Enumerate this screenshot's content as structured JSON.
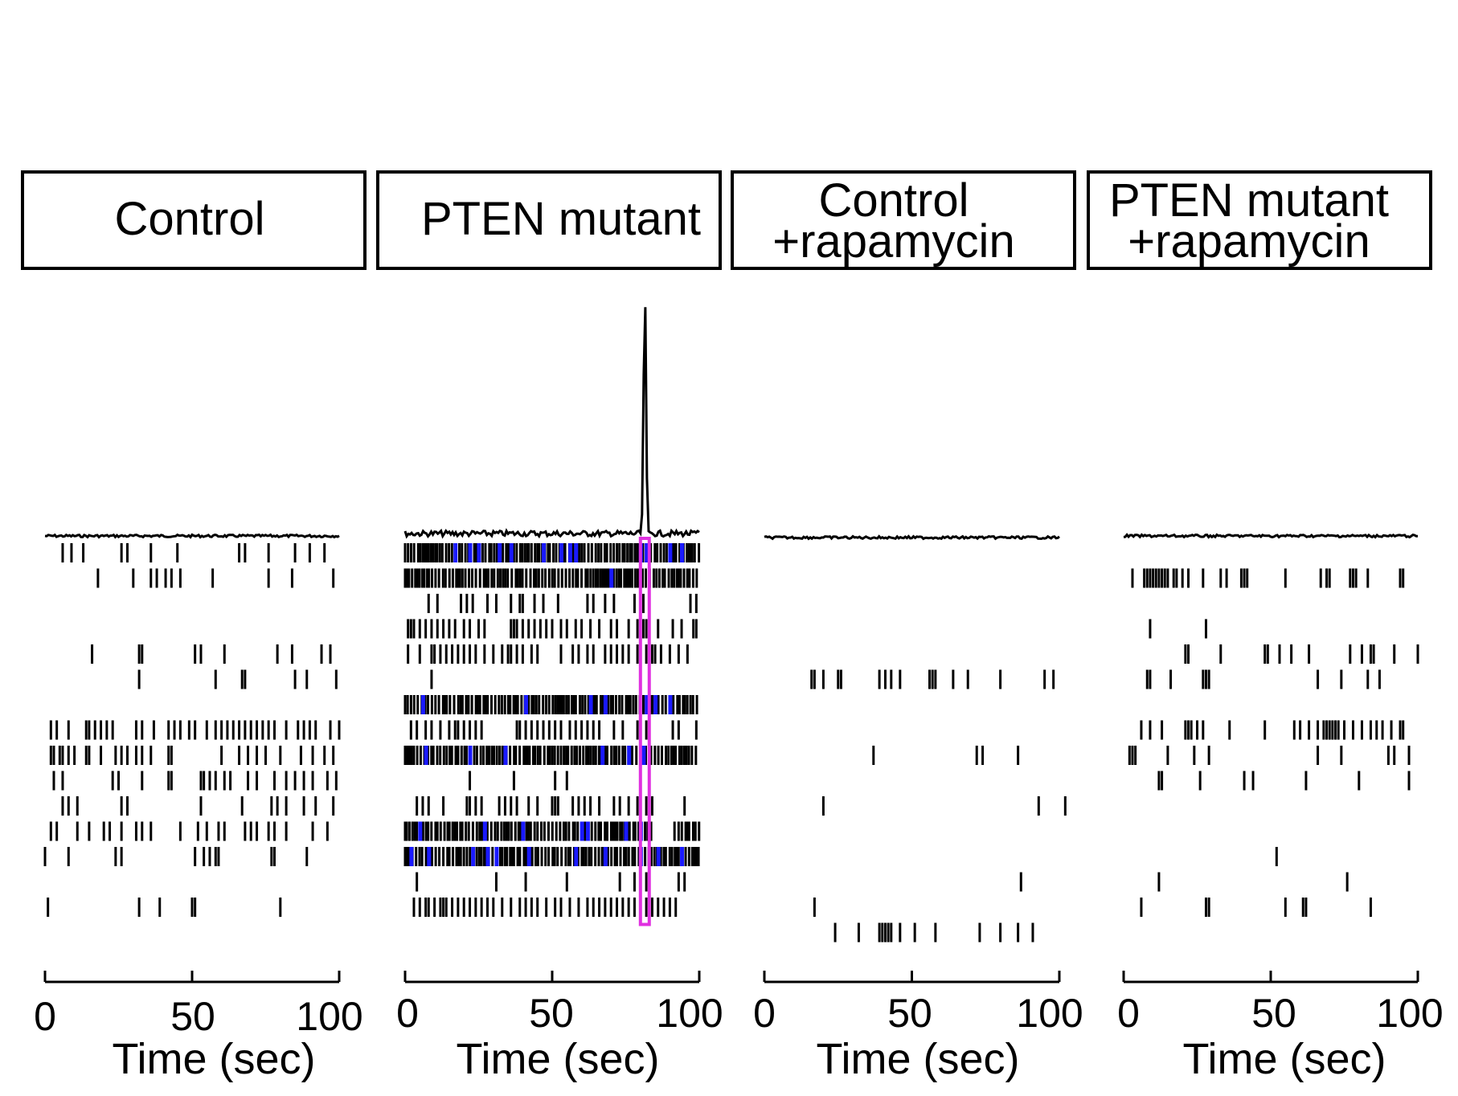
{
  "chart_data": [
    {
      "type": "raster",
      "title": "Control",
      "xlabel": "Time (sec)",
      "xlim": [
        0,
        100
      ],
      "xticks": [
        0,
        50,
        100
      ],
      "rows": [
        {
          "spikes": [
            6,
            9,
            13,
            26,
            28,
            36,
            45,
            66,
            68,
            76,
            85,
            90,
            95
          ],
          "sync": []
        },
        {
          "spikes": [
            18,
            30,
            36,
            38,
            41,
            43,
            46,
            57,
            76,
            84,
            98
          ],
          "sync": []
        },
        {
          "spikes": [],
          "sync": []
        },
        {
          "spikes": [],
          "sync": []
        },
        {
          "spikes": [
            16,
            32,
            33,
            51,
            53,
            61,
            79,
            84,
            94,
            97
          ],
          "sync": []
        },
        {
          "spikes": [
            32,
            58,
            67,
            68,
            85,
            89,
            99
          ],
          "sync": []
        },
        {
          "spikes": [],
          "sync": []
        },
        {
          "spikes": [
            2,
            4,
            8,
            14,
            15,
            17,
            19,
            21,
            23,
            31,
            33,
            37,
            42,
            44,
            46,
            49,
            51,
            55,
            58,
            60,
            62,
            64,
            66,
            68,
            70,
            72,
            74,
            76,
            78,
            82,
            86,
            88,
            90,
            92,
            97,
            100
          ],
          "sync": []
        },
        {
          "spikes": [
            2,
            3,
            5,
            6,
            8,
            10,
            14,
            15,
            19,
            24,
            26,
            28,
            31,
            33,
            36,
            42,
            43,
            60,
            66,
            69,
            72,
            75,
            80,
            87,
            91,
            95,
            98
          ],
          "sync": []
        },
        {
          "spikes": [
            3,
            6,
            23,
            25,
            33,
            42,
            43,
            53,
            54,
            56,
            58,
            61,
            63,
            69,
            72,
            78,
            82,
            85,
            88,
            91,
            96,
            99
          ],
          "sync": []
        },
        {
          "spikes": [
            6,
            8,
            11,
            26,
            28,
            53,
            67,
            77,
            79,
            82,
            88,
            92,
            98
          ],
          "sync": []
        },
        {
          "spikes": [
            2,
            4,
            11,
            15,
            20,
            22,
            26,
            31,
            33,
            36,
            46,
            52,
            55,
            59,
            61,
            68,
            70,
            72,
            76,
            78,
            82,
            91,
            96
          ],
          "sync": []
        },
        {
          "spikes": [
            0,
            8,
            24,
            26,
            51,
            54,
            56,
            58,
            59,
            77,
            78,
            89
          ],
          "sync": []
        },
        {
          "spikes": [],
          "sync": []
        },
        {
          "spikes": [
            1,
            32,
            39,
            50,
            51,
            80
          ],
          "sync": []
        },
        {
          "spikes": [],
          "sync": []
        }
      ]
    },
    {
      "type": "raster",
      "title": "PTEN mutant",
      "xlabel": "Time (sec)",
      "xlim": [
        0,
        100
      ],
      "xticks": [
        0,
        50,
        100
      ],
      "burst_window": [
        80,
        83
      ],
      "rows": [
        {
          "spikes": "dense",
          "sync": [
            17,
            22,
            25,
            32,
            36,
            47,
            53,
            56,
            58,
            80,
            82,
            90,
            94
          ]
        },
        {
          "spikes": "dense",
          "sync": [
            70
          ]
        },
        {
          "spikes": [
            8,
            11,
            19,
            21,
            23,
            28,
            31,
            36,
            39,
            40,
            44,
            47,
            52,
            62,
            64,
            68,
            71,
            78,
            81,
            83,
            97,
            99
          ],
          "sync": []
        },
        {
          "spikes": [
            1,
            2,
            3,
            5,
            7,
            9,
            11,
            13,
            15,
            17,
            20,
            22,
            25,
            27,
            36,
            37,
            38,
            40,
            42,
            44,
            46,
            48,
            50,
            53,
            55,
            58,
            60,
            63,
            66,
            70,
            72,
            76,
            79,
            81,
            82,
            86,
            91,
            94,
            98,
            99
          ],
          "sync": []
        },
        {
          "spikes": [
            1,
            5,
            9,
            10,
            12,
            14,
            16,
            18,
            20,
            22,
            24,
            27,
            30,
            33,
            35,
            36,
            38,
            40,
            43,
            45,
            53,
            57,
            59,
            62,
            64,
            68,
            70,
            72,
            74,
            76,
            79,
            80,
            82,
            84,
            85,
            87,
            90,
            93,
            96
          ],
          "sync": []
        },
        {
          "spikes": [
            9
          ],
          "sync": []
        },
        {
          "spikes": "dense",
          "sync": [
            6,
            41,
            63,
            68,
            82,
            85,
            90
          ]
        },
        {
          "spikes": [
            2,
            4,
            7,
            9,
            12,
            15,
            17,
            18,
            20,
            22,
            24,
            26,
            38,
            39,
            41,
            43,
            45,
            47,
            49,
            51,
            53,
            56,
            58,
            60,
            62,
            64,
            66,
            71,
            74,
            79,
            82,
            91,
            93,
            99
          ],
          "sync": []
        },
        {
          "spikes": "dense",
          "sync": [
            7,
            22,
            34,
            67,
            76,
            81
          ]
        },
        {
          "spikes": [
            22,
            37,
            51,
            55
          ],
          "sync": []
        },
        {
          "spikes": [
            4,
            6,
            8,
            13,
            21,
            22,
            24,
            26,
            32,
            34,
            36,
            38,
            42,
            45,
            50,
            51,
            52,
            57,
            59,
            61,
            63,
            66,
            71,
            73,
            76,
            79,
            82,
            84,
            95
          ],
          "sync": []
        },
        {
          "spikes": "dense-gap",
          "gap": [
            85,
            91
          ],
          "sync": [
            5,
            27,
            40,
            60,
            62,
            75,
            80
          ]
        },
        {
          "spikes": "dense",
          "sync": [
            2,
            8,
            23,
            28,
            31,
            42,
            58,
            68,
            80,
            86,
            94
          ]
        },
        {
          "spikes": [
            4,
            31,
            41,
            55,
            73,
            78,
            82,
            93,
            95
          ],
          "sync": []
        },
        {
          "spikes": [
            3,
            5,
            7,
            8,
            10,
            12,
            13,
            14,
            16,
            18,
            20,
            22,
            24,
            26,
            28,
            30,
            33,
            36,
            39,
            41,
            43,
            45,
            48,
            51,
            53,
            56,
            59,
            62,
            64,
            66,
            68,
            70,
            72,
            74,
            76,
            78,
            80,
            82,
            84,
            86,
            88,
            90,
            92
          ],
          "sync": []
        },
        {
          "spikes": [],
          "sync": []
        }
      ]
    },
    {
      "type": "raster",
      "title_lines": [
        "Control",
        "+rapamycin"
      ],
      "xlabel": "Time (sec)",
      "xlim": [
        0,
        100
      ],
      "xticks": [
        0,
        50,
        100
      ],
      "rows": [
        {
          "spikes": [],
          "sync": []
        },
        {
          "spikes": [],
          "sync": []
        },
        {
          "spikes": [],
          "sync": []
        },
        {
          "spikes": [],
          "sync": []
        },
        {
          "spikes": [],
          "sync": []
        },
        {
          "spikes": [
            16,
            17,
            20,
            25,
            26,
            39,
            41,
            43,
            46,
            56,
            57,
            58,
            64,
            69,
            80,
            95,
            98
          ],
          "sync": []
        },
        {
          "spikes": [],
          "sync": []
        },
        {
          "spikes": [],
          "sync": []
        },
        {
          "spikes": [
            37,
            72,
            74,
            86
          ],
          "sync": []
        },
        {
          "spikes": [],
          "sync": []
        },
        {
          "spikes": [
            20,
            93,
            102
          ],
          "sync": []
        },
        {
          "spikes": [],
          "sync": []
        },
        {
          "spikes": [],
          "sync": []
        },
        {
          "spikes": [
            87
          ],
          "sync": []
        },
        {
          "spikes": [
            17
          ],
          "sync": []
        },
        {
          "spikes": [
            24,
            32,
            39,
            40,
            41,
            42,
            43,
            46,
            51,
            58,
            73,
            80,
            86,
            91
          ],
          "sync": []
        }
      ]
    },
    {
      "type": "raster",
      "title_lines": [
        "PTEN mutant",
        "+rapamycin"
      ],
      "xlabel": "Time (sec)",
      "xlim": [
        0,
        100
      ],
      "xticks": [
        0,
        50,
        100
      ],
      "rows": [
        {
          "spikes": [],
          "sync": []
        },
        {
          "spikes": [
            3,
            7,
            8,
            9,
            10,
            11,
            12,
            13,
            14,
            15,
            17,
            18,
            20,
            22,
            27,
            33,
            35,
            40,
            41,
            42,
            55,
            67,
            69,
            70,
            77,
            78,
            79,
            83,
            94,
            95
          ],
          "sync": []
        },
        {
          "spikes": [],
          "sync": []
        },
        {
          "spikes": [
            9,
            28
          ],
          "sync": []
        },
        {
          "spikes": [
            21,
            22,
            33,
            48,
            49,
            53,
            57,
            63,
            77,
            81,
            84,
            85,
            92,
            100
          ],
          "sync": []
        },
        {
          "spikes": [
            8,
            9,
            16,
            27,
            28,
            29,
            66,
            74,
            83,
            87
          ],
          "sync": []
        },
        {
          "spikes": [],
          "sync": []
        },
        {
          "spikes": [
            6,
            9,
            13,
            21,
            22,
            23,
            25,
            27,
            36,
            48,
            58,
            60,
            63,
            66,
            68,
            69,
            70,
            71,
            72,
            73,
            75,
            78,
            81,
            84,
            86,
            88,
            91,
            94,
            95
          ],
          "sync": []
        },
        {
          "spikes": [
            2,
            3,
            4,
            15,
            24,
            29,
            66,
            74,
            90,
            92,
            97
          ],
          "sync": []
        },
        {
          "spikes": [
            12,
            13,
            26,
            41,
            44,
            62,
            80,
            97
          ],
          "sync": []
        },
        {
          "spikes": [],
          "sync": []
        },
        {
          "spikes": [],
          "sync": []
        },
        {
          "spikes": [
            52
          ],
          "sync": []
        },
        {
          "spikes": [
            12,
            76
          ],
          "sync": []
        },
        {
          "spikes": [
            6,
            28,
            29,
            55,
            61,
            62,
            84
          ],
          "sync": []
        },
        {
          "spikes": [],
          "sync": []
        }
      ]
    }
  ]
}
